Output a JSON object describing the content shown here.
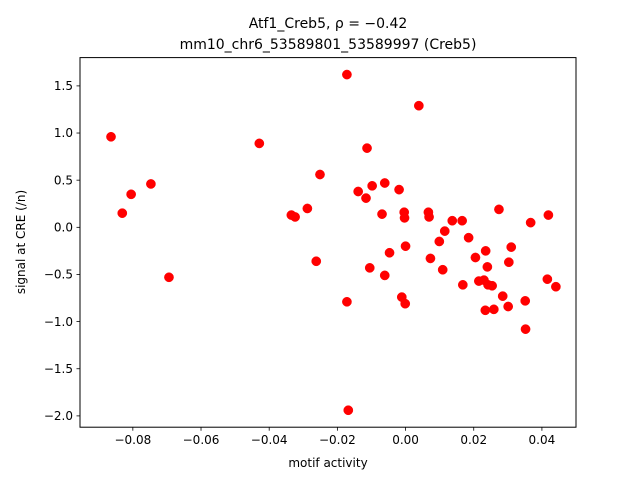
{
  "chart_data": {
    "type": "scatter",
    "title_line1": "Atf1_Creb5, ρ = −0.42",
    "title_line2": "mm10_chr6_53589801_53589997 (Creb5)",
    "xlabel": "motif activity",
    "ylabel": "signal at CRE (/n)",
    "xlim": [
      -0.0955,
      0.05
    ],
    "ylim": [
      -2.12,
      1.8
    ],
    "xticks": [
      -0.08,
      -0.06,
      -0.04,
      -0.02,
      0.0,
      0.02,
      0.04
    ],
    "xtick_labels": [
      "−0.08",
      "−0.06",
      "−0.04",
      "−0.02",
      "0.00",
      "0.02",
      "0.04"
    ],
    "yticks": [
      -2.0,
      -1.5,
      -1.0,
      -0.5,
      0.0,
      0.5,
      1.0,
      1.5
    ],
    "ytick_labels": [
      "−2.0",
      "−1.5",
      "−1.0",
      "−0.5",
      "0.0",
      "0.5",
      "1.0",
      "1.5"
    ],
    "marker_color": "#ff0000",
    "grid": false,
    "points": [
      {
        "x": -0.0864,
        "y": 0.96
      },
      {
        "x": -0.0831,
        "y": 0.15
      },
      {
        "x": -0.0805,
        "y": 0.35
      },
      {
        "x": -0.0747,
        "y": 0.46
      },
      {
        "x": -0.0694,
        "y": -0.53
      },
      {
        "x": -0.0429,
        "y": 0.89
      },
      {
        "x": -0.0335,
        "y": 0.13
      },
      {
        "x": -0.0324,
        "y": 0.11
      },
      {
        "x": -0.0288,
        "y": 0.2
      },
      {
        "x": -0.0262,
        "y": -0.36
      },
      {
        "x": -0.0251,
        "y": 0.56
      },
      {
        "x": -0.0172,
        "y": 1.62
      },
      {
        "x": -0.0172,
        "y": -0.79
      },
      {
        "x": -0.0168,
        "y": -1.94
      },
      {
        "x": -0.0139,
        "y": 0.38
      },
      {
        "x": -0.0116,
        "y": 0.31
      },
      {
        "x": -0.0113,
        "y": 0.84
      },
      {
        "x": -0.0105,
        "y": -0.43
      },
      {
        "x": -0.0098,
        "y": 0.44
      },
      {
        "x": -0.0069,
        "y": 0.14
      },
      {
        "x": -0.0061,
        "y": 0.47
      },
      {
        "x": -0.0061,
        "y": -0.51
      },
      {
        "x": -0.0047,
        "y": -0.27
      },
      {
        "x": -0.0019,
        "y": 0.4
      },
      {
        "x": -0.0011,
        "y": -0.74
      },
      {
        "x": -0.0004,
        "y": 0.16
      },
      {
        "x": -0.0003,
        "y": 0.1
      },
      {
        "x": -0.0001,
        "y": -0.81
      },
      {
        "x": 0.0,
        "y": -0.2
      },
      {
        "x": 0.0039,
        "y": 1.29
      },
      {
        "x": 0.0067,
        "y": 0.16
      },
      {
        "x": 0.0069,
        "y": 0.11
      },
      {
        "x": 0.0073,
        "y": -0.33
      },
      {
        "x": 0.0099,
        "y": -0.15
      },
      {
        "x": 0.0109,
        "y": -0.45
      },
      {
        "x": 0.0115,
        "y": -0.04
      },
      {
        "x": 0.0137,
        "y": 0.07
      },
      {
        "x": 0.0166,
        "y": 0.07
      },
      {
        "x": 0.0168,
        "y": -0.61
      },
      {
        "x": 0.0185,
        "y": -0.11
      },
      {
        "x": 0.0205,
        "y": -0.32
      },
      {
        "x": 0.0215,
        "y": -0.57
      },
      {
        "x": 0.023,
        "y": -0.56
      },
      {
        "x": 0.0234,
        "y": -0.88
      },
      {
        "x": 0.0235,
        "y": -0.25
      },
      {
        "x": 0.024,
        "y": -0.42
      },
      {
        "x": 0.0242,
        "y": -0.61
      },
      {
        "x": 0.0254,
        "y": -0.62
      },
      {
        "x": 0.0259,
        "y": -0.87
      },
      {
        "x": 0.0274,
        "y": 0.19
      },
      {
        "x": 0.0285,
        "y": -0.73
      },
      {
        "x": 0.0301,
        "y": -0.84
      },
      {
        "x": 0.0303,
        "y": -0.37
      },
      {
        "x": 0.031,
        "y": -0.21
      },
      {
        "x": 0.0351,
        "y": -0.78
      },
      {
        "x": 0.0352,
        "y": -1.08
      },
      {
        "x": 0.0367,
        "y": 0.05
      },
      {
        "x": 0.0416,
        "y": -0.55
      },
      {
        "x": 0.0419,
        "y": 0.13
      },
      {
        "x": 0.0441,
        "y": -0.63
      }
    ]
  }
}
